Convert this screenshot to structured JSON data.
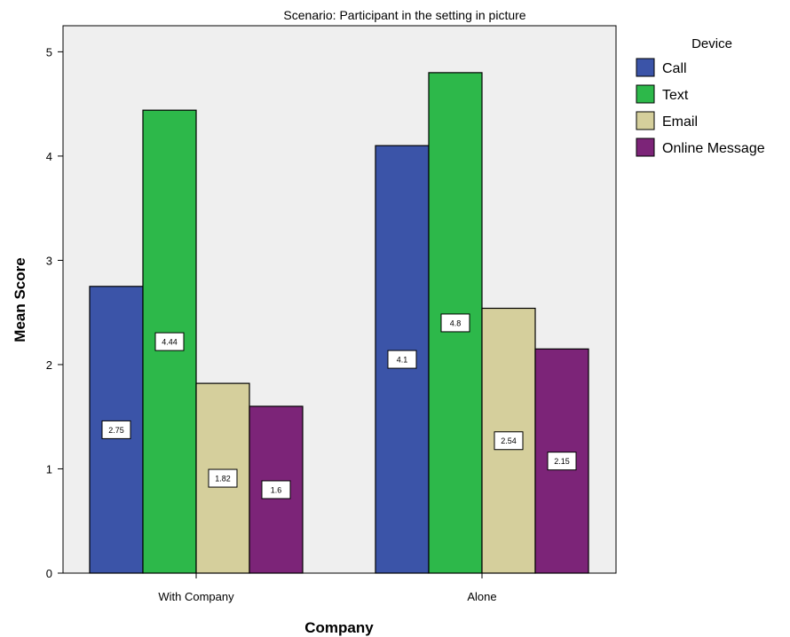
{
  "chart_data": {
    "type": "bar",
    "title": "Scenario: Participant in the setting in picture",
    "xlabel": "Company",
    "ylabel": "Mean Score",
    "categories": [
      "With Company",
      "Alone"
    ],
    "ylim": [
      0,
      5.25
    ],
    "yticks": [
      0,
      1,
      2,
      3,
      4,
      5
    ],
    "legend_title": "Device",
    "legend_position": "right",
    "grid": false,
    "series": [
      {
        "name": "Call",
        "color": "#3b54a8",
        "values": [
          2.75,
          4.1
        ],
        "labels": [
          "2.75",
          "4.1"
        ]
      },
      {
        "name": "Text",
        "color": "#2db84a",
        "values": [
          4.44,
          4.8
        ],
        "labels": [
          "4.44",
          "4.8"
        ]
      },
      {
        "name": "Email",
        "color": "#d5cf9c",
        "values": [
          1.82,
          2.54
        ],
        "labels": [
          "1.82",
          "2.54"
        ]
      },
      {
        "name": "Online Message",
        "color": "#7c2478",
        "values": [
          1.6,
          2.15
        ],
        "labels": [
          "1.6",
          "2.15"
        ]
      }
    ],
    "plot_background": "#efefef"
  }
}
